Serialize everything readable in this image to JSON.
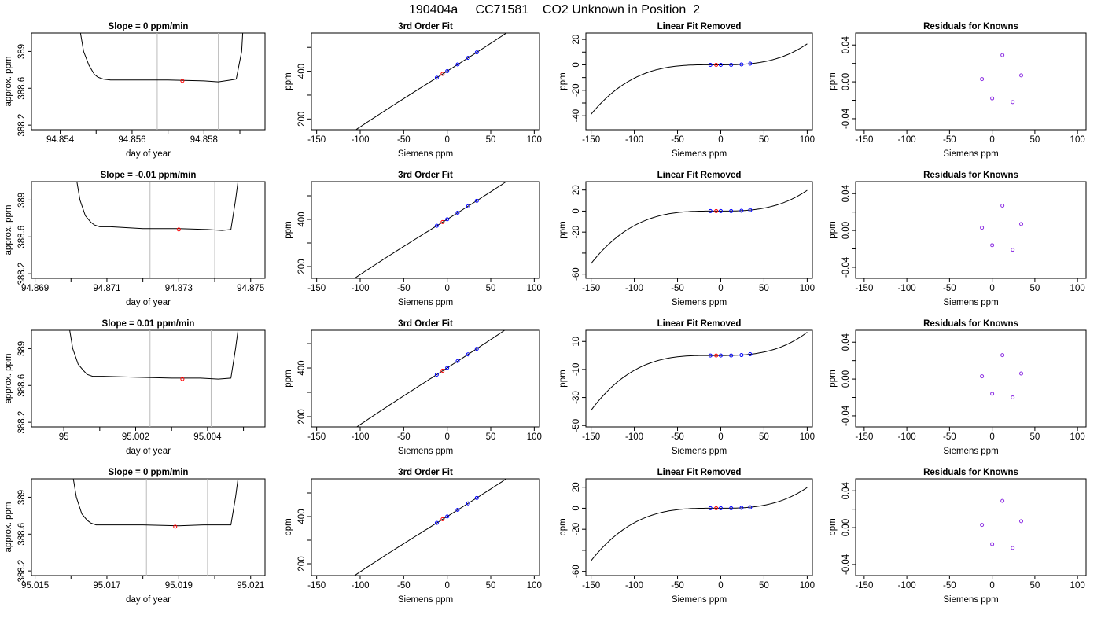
{
  "page_title": "190404a     CC71581    CO2 Unknown in Position  2",
  "colors": {
    "axis": "#000000",
    "curve": "#000000",
    "vline": "#bbbbbb",
    "known": "#0000ff",
    "unknown": "#ff0000",
    "residual": "#8a2be2"
  },
  "chart_data": [
    {
      "type": "line",
      "title": "Slope =  0  ppm/min",
      "xlabel": "day of year",
      "ylabel": "approx. ppm",
      "xlim": [
        94.8532,
        94.8597
      ],
      "ylim": [
        388.15,
        389.2
      ],
      "x_ticks": [
        94.854,
        94.856,
        94.858
      ],
      "x_minor_ticks": [
        94.855,
        94.857,
        94.859
      ],
      "y_ticks": [
        388.2,
        388.6,
        389.0
      ],
      "vlines": [
        94.8567,
        94.8584
      ],
      "series": [
        {
          "x": [
            94.8545,
            94.85465,
            94.8548,
            94.85495,
            94.85505,
            94.8552,
            94.8554,
            94.8556,
            94.857,
            94.858,
            94.8584,
            94.85875,
            94.8589,
            94.85905,
            94.8591
          ],
          "y": [
            389.35,
            389.0,
            388.85,
            388.75,
            388.72,
            388.7,
            388.69,
            388.69,
            388.69,
            388.68,
            388.67,
            388.69,
            388.7,
            389.0,
            389.35
          ]
        }
      ],
      "marker": {
        "x": 94.8574,
        "y": 388.68
      }
    },
    {
      "type": "line",
      "title": "3rd Order Fit",
      "xlabel": "Siemens ppm",
      "ylabel": "ppm",
      "xlim": [
        -156,
        106
      ],
      "ylim": [
        155,
        560
      ],
      "x_ticks": [
        -150,
        -100,
        -50,
        0,
        50,
        100
      ],
      "y_ticks": [
        200,
        400
      ],
      "y_minor_ticks": [
        300,
        500
      ],
      "fit_curve": {
        "fn": "cubic",
        "a": 400.4,
        "b": 2.3,
        "c": 0.0003,
        "d": 6.4e-06,
        "x_range": [
          -150,
          100
        ]
      },
      "known_points": {
        "x": [
          -12,
          0,
          12,
          24,
          34
        ],
        "y": [
          372.8,
          400.4,
          428.2,
          455.9,
          478.9
        ]
      },
      "unknown_point": {
        "x": -5.3,
        "y": 388.7
      }
    },
    {
      "type": "line",
      "title": "Linear Fit Removed",
      "xlabel": "Siemens ppm",
      "ylabel": "ppm",
      "xlim": [
        -156,
        106
      ],
      "ylim": [
        -51,
        25
      ],
      "x_ticks": [
        -150,
        -100,
        -50,
        0,
        50,
        100
      ],
      "y_ticks": [
        -40,
        -20,
        0,
        20
      ],
      "y_minor_ticks": [
        -30,
        -10,
        10
      ],
      "fit_curve": {
        "fn": "cubic",
        "a": 0,
        "b": 0,
        "c": 0.0003,
        "d": 1.35e-05,
        "x_range": [
          -150,
          100
        ]
      },
      "known_points": {
        "x": [
          -12,
          0,
          12,
          24,
          34
        ],
        "y": [
          0,
          0,
          0,
          0.3,
          0.9
        ]
      },
      "unknown_point": {
        "x": -5.3,
        "y": 0
      }
    },
    {
      "type": "scatter",
      "title": "Residuals for Knowns",
      "xlabel": "Siemens ppm",
      "ylabel": "ppm",
      "xlim": [
        -160,
        110
      ],
      "ylim": [
        -0.052,
        0.053
      ],
      "x_ticks": [
        -150,
        -100,
        -50,
        0,
        50,
        100
      ],
      "y_ticks": [
        -0.04,
        0.0,
        0.04
      ],
      "y_tick_labels": [
        "-0.04",
        "0.00",
        "0.04"
      ],
      "y_minor_ticks": [
        -0.02,
        0.02
      ],
      "points": {
        "x": [
          -12,
          0,
          12,
          24,
          34
        ],
        "y": [
          0.003,
          -0.018,
          0.029,
          -0.022,
          0.007
        ]
      }
    },
    {
      "type": "line",
      "title": "Slope =  -0.01  ppm/min",
      "xlabel": "day of year",
      "ylabel": "approx. ppm",
      "xlim": [
        94.8689,
        94.8754
      ],
      "ylim": [
        388.15,
        389.2
      ],
      "x_ticks": [
        94.869,
        94.871,
        94.873,
        94.875
      ],
      "x_minor_ticks": [
        94.87,
        94.872,
        94.874
      ],
      "y_ticks": [
        388.2,
        388.6,
        389.0
      ],
      "vlines": [
        94.8722,
        94.874
      ],
      "series": [
        {
          "x": [
            94.8701,
            94.87025,
            94.8704,
            94.87055,
            94.87065,
            94.8708,
            94.8711,
            94.872,
            94.873,
            94.8738,
            94.8742,
            94.87445,
            94.87458,
            94.8747
          ],
          "y": [
            389.35,
            389.0,
            388.83,
            388.76,
            388.73,
            388.71,
            388.71,
            388.69,
            388.69,
            388.68,
            388.67,
            388.68,
            389.0,
            389.35
          ]
        }
      ],
      "marker": {
        "x": 94.873,
        "y": 388.68
      }
    },
    {
      "type": "line",
      "title": "3rd Order Fit",
      "xlabel": "Siemens ppm",
      "ylabel": "ppm",
      "xlim": [
        -156,
        106
      ],
      "ylim": [
        150,
        560
      ],
      "x_ticks": [
        -150,
        -100,
        -50,
        0,
        50,
        100
      ],
      "y_ticks": [
        200,
        400
      ],
      "y_minor_ticks": [
        300,
        500
      ],
      "fit_curve": {
        "fn": "cubic",
        "a": 400.4,
        "b": 2.3,
        "c": 0.0003,
        "d": 7.5e-06,
        "x_range": [
          -150,
          100
        ]
      },
      "known_points": {
        "x": [
          -12,
          0,
          12,
          24,
          34
        ],
        "y": [
          372.8,
          400.4,
          428.2,
          455.9,
          478.9
        ]
      },
      "unknown_point": {
        "x": -5.3,
        "y": 388.7
      }
    },
    {
      "type": "line",
      "title": "Linear Fit Removed",
      "xlabel": "Siemens ppm",
      "ylabel": "ppm",
      "xlim": [
        -156,
        106
      ],
      "ylim": [
        -64,
        28
      ],
      "x_ticks": [
        -150,
        -100,
        -50,
        0,
        50,
        100
      ],
      "y_ticks": [
        -60,
        -20,
        0,
        20
      ],
      "y_minor_ticks": [
        -40
      ],
      "fit_curve": {
        "fn": "cubic",
        "a": 0,
        "b": 0,
        "c": 0.0003,
        "d": 1.68e-05,
        "x_range": [
          -150,
          100
        ]
      },
      "known_points": {
        "x": [
          -12,
          0,
          12,
          24,
          34
        ],
        "y": [
          0,
          0,
          0,
          0.3,
          1.0
        ]
      },
      "unknown_point": {
        "x": -5.3,
        "y": 0
      }
    },
    {
      "type": "scatter",
      "title": "Residuals for Knowns",
      "xlabel": "Siemens ppm",
      "ylabel": "ppm",
      "xlim": [
        -160,
        110
      ],
      "ylim": [
        -0.052,
        0.053
      ],
      "x_ticks": [
        -150,
        -100,
        -50,
        0,
        50,
        100
      ],
      "y_ticks": [
        -0.04,
        0.0,
        0.04
      ],
      "y_tick_labels": [
        "-0.04",
        "0.00",
        "0.04"
      ],
      "y_minor_ticks": [
        -0.02,
        0.02
      ],
      "points": {
        "x": [
          -12,
          0,
          12,
          24,
          34
        ],
        "y": [
          0.003,
          -0.016,
          0.027,
          -0.021,
          0.007
        ]
      }
    },
    {
      "type": "line",
      "title": "Slope =  0.01  ppm/min",
      "xlabel": "day of year",
      "ylabel": "approx. ppm",
      "xlim": [
        94.9991,
        95.0056
      ],
      "ylim": [
        388.15,
        389.2
      ],
      "x_ticks": [
        95.0,
        95.002,
        95.004
      ],
      "x_minor_ticks": [
        95.001,
        95.003,
        95.005
      ],
      "y_ticks": [
        388.2,
        388.6,
        389.0
      ],
      "vlines": [
        95.0024,
        95.0041
      ],
      "series": [
        {
          "x": [
            95.0001,
            95.00025,
            95.0004,
            95.00055,
            95.00065,
            95.0008,
            95.0011,
            95.002,
            95.003,
            95.0038,
            95.0043,
            95.00465,
            95.00478,
            95.0049
          ],
          "y": [
            389.35,
            389.0,
            388.83,
            388.76,
            388.72,
            388.7,
            388.7,
            388.69,
            388.68,
            388.68,
            388.67,
            388.68,
            389.0,
            389.35
          ]
        }
      ],
      "marker": {
        "x": 95.0033,
        "y": 388.67
      }
    },
    {
      "type": "line",
      "title": "3rd Order Fit",
      "xlabel": "Siemens ppm",
      "ylabel": "ppm",
      "xlim": [
        -156,
        106
      ],
      "ylim": [
        158,
        555
      ],
      "x_ticks": [
        -150,
        -100,
        -50,
        0,
        50,
        100
      ],
      "y_ticks": [
        200,
        400
      ],
      "y_minor_ticks": [
        300,
        500
      ],
      "fit_curve": {
        "fn": "cubic",
        "a": 400.4,
        "b": 2.3,
        "c": 0.0003,
        "d": 6e-06,
        "x_range": [
          -150,
          100
        ]
      },
      "known_points": {
        "x": [
          -12,
          0,
          12,
          24,
          34
        ],
        "y": [
          372.8,
          400.4,
          428.2,
          455.9,
          478.9
        ]
      },
      "unknown_point": {
        "x": -5.3,
        "y": 388.7
      }
    },
    {
      "type": "line",
      "title": "Linear Fit Removed",
      "xlabel": "Siemens ppm",
      "ylabel": "ppm",
      "xlim": [
        -156,
        106
      ],
      "ylim": [
        -51,
        18
      ],
      "x_ticks": [
        -150,
        -100,
        -50,
        0,
        50,
        100
      ],
      "y_ticks": [
        -50,
        -30,
        -10,
        10
      ],
      "fit_curve": {
        "fn": "cubic",
        "a": 0,
        "b": 0,
        "c": 0.0003,
        "d": 1.36e-05,
        "x_range": [
          -150,
          100
        ]
      },
      "known_points": {
        "x": [
          -12,
          0,
          12,
          24,
          34
        ],
        "y": [
          0,
          0,
          0,
          0.3,
          0.9
        ]
      },
      "unknown_point": {
        "x": -5.3,
        "y": 0
      }
    },
    {
      "type": "scatter",
      "title": "Residuals for Knowns",
      "xlabel": "Siemens ppm",
      "ylabel": "ppm",
      "xlim": [
        -160,
        110
      ],
      "ylim": [
        -0.052,
        0.053
      ],
      "x_ticks": [
        -150,
        -100,
        -50,
        0,
        50,
        100
      ],
      "y_ticks": [
        -0.04,
        0.0,
        0.04
      ],
      "y_tick_labels": [
        "-0.04",
        "0.00",
        "0.04"
      ],
      "y_minor_ticks": [
        -0.02,
        0.02
      ],
      "points": {
        "x": [
          -12,
          0,
          12,
          24,
          34
        ],
        "y": [
          0.003,
          -0.016,
          0.026,
          -0.02,
          0.006
        ]
      }
    },
    {
      "type": "line",
      "title": "Slope =  0  ppm/min",
      "xlabel": "day of year",
      "ylabel": "approx. ppm",
      "xlim": [
        95.0149,
        95.0214
      ],
      "ylim": [
        388.15,
        389.2
      ],
      "x_ticks": [
        95.015,
        95.017,
        95.019,
        95.021
      ],
      "x_minor_ticks": [
        95.016,
        95.018,
        95.02
      ],
      "y_ticks": [
        388.2,
        388.6,
        389.0
      ],
      "vlines": [
        95.0181,
        95.0198
      ],
      "series": [
        {
          "x": [
            95.016,
            95.01615,
            95.0163,
            95.01645,
            95.01655,
            95.0167,
            95.017,
            95.018,
            95.019,
            95.0197,
            95.0202,
            95.02045,
            95.02058,
            95.0207
          ],
          "y": [
            389.35,
            389.0,
            388.82,
            388.75,
            388.72,
            388.7,
            388.7,
            388.7,
            388.69,
            388.7,
            388.7,
            388.7,
            389.0,
            389.35
          ]
        }
      ],
      "marker": {
        "x": 95.0189,
        "y": 388.68
      }
    },
    {
      "type": "line",
      "title": "3rd Order Fit",
      "xlabel": "Siemens ppm",
      "ylabel": "ppm",
      "xlim": [
        -156,
        106
      ],
      "ylim": [
        150,
        560
      ],
      "x_ticks": [
        -150,
        -100,
        -50,
        0,
        50,
        100
      ],
      "y_ticks": [
        200,
        400
      ],
      "y_minor_ticks": [
        300,
        500
      ],
      "fit_curve": {
        "fn": "cubic",
        "a": 400.4,
        "b": 2.3,
        "c": 0.0003,
        "d": 7.5e-06,
        "x_range": [
          -150,
          100
        ]
      },
      "known_points": {
        "x": [
          -12,
          0,
          12,
          24,
          34
        ],
        "y": [
          372.8,
          400.4,
          428.2,
          455.9,
          478.9
        ]
      },
      "unknown_point": {
        "x": -5.3,
        "y": 388.7
      }
    },
    {
      "type": "line",
      "title": "Linear Fit Removed",
      "xlabel": "Siemens ppm",
      "ylabel": "ppm",
      "xlim": [
        -156,
        106
      ],
      "ylim": [
        -64,
        28
      ],
      "x_ticks": [
        -150,
        -100,
        -50,
        0,
        50,
        100
      ],
      "y_ticks": [
        -60,
        -20,
        0,
        20
      ],
      "y_minor_ticks": [
        -40
      ],
      "fit_curve": {
        "fn": "cubic",
        "a": 0,
        "b": 0,
        "c": 0.0003,
        "d": 1.68e-05,
        "x_range": [
          -150,
          100
        ]
      },
      "known_points": {
        "x": [
          -12,
          0,
          12,
          24,
          34
        ],
        "y": [
          0,
          0,
          0,
          0.3,
          1.0
        ]
      },
      "unknown_point": {
        "x": -5.3,
        "y": 0
      }
    },
    {
      "type": "scatter",
      "title": "Residuals for Knowns",
      "xlabel": "Siemens ppm",
      "ylabel": "ppm",
      "xlim": [
        -160,
        110
      ],
      "ylim": [
        -0.052,
        0.053
      ],
      "x_ticks": [
        -150,
        -100,
        -50,
        0,
        50,
        100
      ],
      "y_ticks": [
        -0.04,
        0.0,
        0.04
      ],
      "y_tick_labels": [
        "-0.04",
        "0.00",
        "0.04"
      ],
      "y_minor_ticks": [
        -0.02,
        0.02
      ],
      "points": {
        "x": [
          -12,
          0,
          12,
          24,
          34
        ],
        "y": [
          0.003,
          -0.018,
          0.029,
          -0.022,
          0.007
        ]
      }
    }
  ]
}
